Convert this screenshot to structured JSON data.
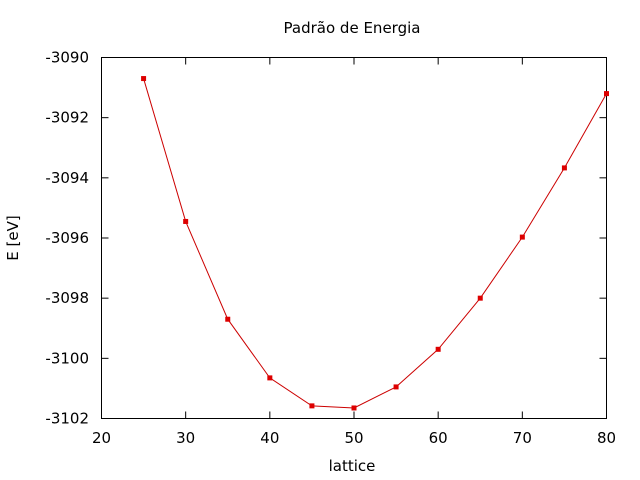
{
  "chart_data": {
    "type": "line",
    "title": "Padrão de Energia",
    "xlabel": "lattice",
    "ylabel": "E [eV]",
    "xlim": [
      20,
      80
    ],
    "ylim": [
      -3102,
      -3090
    ],
    "xticks": [
      20,
      30,
      40,
      50,
      60,
      70,
      80
    ],
    "yticks": [
      -3102,
      -3100,
      -3098,
      -3096,
      -3094,
      -3092,
      -3090
    ],
    "grid": false,
    "legend": "none",
    "series": [
      {
        "color": "#dd0000",
        "x": [
          25,
          30,
          35,
          40,
          45,
          50,
          55,
          60,
          65,
          70,
          75,
          80
        ],
        "y": [
          -3090.7,
          -3095.45,
          -3098.7,
          -3100.65,
          -3101.58,
          -3101.65,
          -3100.95,
          -3099.7,
          -3098.0,
          -3095.97,
          -3093.67,
          -3091.2
        ]
      }
    ]
  }
}
